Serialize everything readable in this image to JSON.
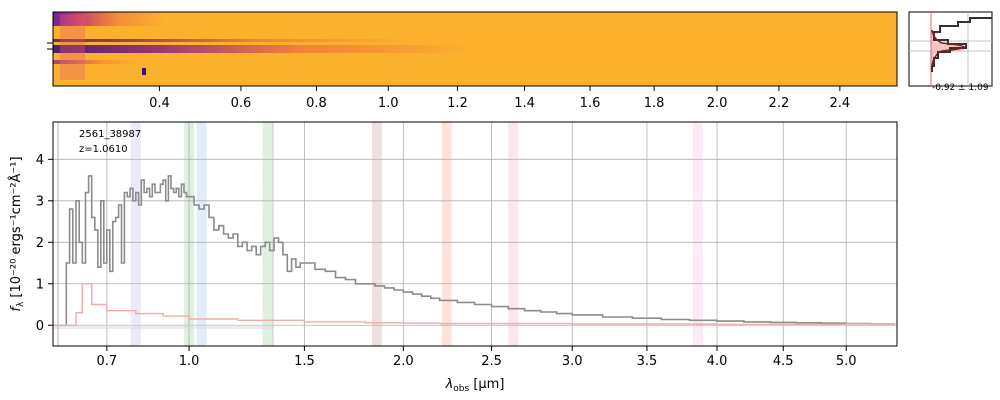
{
  "colors": {
    "spectrum_line": "#8c8c8c",
    "error_line": "#f4aaaa",
    "grid": "#b0b0b0",
    "twod_fill": "#fbb12c",
    "twod_dark": "#3b0f70",
    "profile_line": "#333333",
    "profile_fit": "#8b1a1a",
    "profile_fill": "#f2b5b5"
  },
  "chart_data": [
    {
      "type": "heatmap",
      "description": "2D spectrum cutout",
      "x_tick_labels": [
        "0.4",
        "0.6",
        "0.8",
        "1.0",
        "1.2",
        "1.4",
        "1.6",
        "1.8",
        "2.0",
        "2.2",
        "2.4"
      ],
      "x_tick_values": [
        0.4,
        0.6,
        0.8,
        1.0,
        1.2,
        1.4,
        1.6,
        1.8,
        2.0,
        2.2,
        2.4
      ],
      "colormap": "plasma"
    },
    {
      "type": "line",
      "description": "spatial profile",
      "annotation": "-0.92 ± 1.09"
    },
    {
      "type": "line",
      "object_id": "2561_38987",
      "redshift_label": "z=1.0610",
      "xlabel_main": "λ",
      "xlabel_sub": "obs",
      "xlabel_unit": " [μm]",
      "ylabel_main": "f",
      "ylabel_sub": "λ",
      "ylabel_unit": " [10⁻²⁰ ergs⁻¹cm⁻²Å⁻¹]",
      "xlim": [
        0.53,
        5.42
      ],
      "ylim": [
        -0.5,
        4.9
      ],
      "x_ticks": [
        0.7,
        1.0,
        1.5,
        2.0,
        2.5,
        3.0,
        3.5,
        4.0,
        4.5,
        5.0
      ],
      "x_tick_labels": [
        "0.7",
        "1.0",
        "1.5",
        "2.0",
        "2.5",
        "3.0",
        "3.5",
        "4.0",
        "4.5",
        "5.0"
      ],
      "y_ticks": [
        0,
        1,
        2,
        3,
        4
      ],
      "y_tick_labels": [
        "0",
        "1",
        "2",
        "3",
        "4"
      ],
      "grid": true,
      "line_bands": [
        {
          "x": 0.8,
          "color": "#c9c4ef"
        },
        {
          "x": 1.0,
          "color": "#a6d4a0"
        },
        {
          "x": 1.05,
          "color": "#a7cbe6"
        },
        {
          "x": 1.33,
          "color": "#a6d4a0"
        },
        {
          "x": 1.86,
          "color": "#c9a9a1"
        },
        {
          "x": 2.24,
          "color": "#f6b19b"
        },
        {
          "x": 2.63,
          "color": "#f5b7cf"
        },
        {
          "x": 3.86,
          "color": "#f6c6e7"
        }
      ],
      "series": [
        {
          "role": "flux",
          "x": [
            0.53,
            0.56,
            0.57,
            0.58,
            0.59,
            0.6,
            0.61,
            0.62,
            0.63,
            0.64,
            0.65,
            0.66,
            0.67,
            0.68,
            0.69,
            0.7,
            0.71,
            0.72,
            0.73,
            0.74,
            0.75,
            0.76,
            0.77,
            0.78,
            0.79,
            0.8,
            0.81,
            0.82,
            0.83,
            0.84,
            0.85,
            0.86,
            0.87,
            0.88,
            0.89,
            0.9,
            0.91,
            0.92,
            0.93,
            0.94,
            0.95,
            0.96,
            0.97,
            0.98,
            0.99,
            1.0,
            1.02,
            1.04,
            1.06,
            1.08,
            1.1,
            1.12,
            1.14,
            1.16,
            1.18,
            1.2,
            1.22,
            1.24,
            1.26,
            1.28,
            1.3,
            1.32,
            1.34,
            1.36,
            1.38,
            1.4,
            1.42,
            1.44,
            1.46,
            1.48,
            1.5,
            1.55,
            1.6,
            1.65,
            1.7,
            1.75,
            1.8,
            1.85,
            1.9,
            1.95,
            2.0,
            2.05,
            2.1,
            2.15,
            2.2,
            2.3,
            2.4,
            2.5,
            2.6,
            2.7,
            2.8,
            2.9,
            3.0,
            3.2,
            3.4,
            3.6,
            3.8,
            4.0,
            4.2,
            4.4,
            4.6,
            4.8,
            5.0,
            5.2,
            5.4
          ],
          "y": [
            0,
            0,
            1.5,
            2.8,
            1.5,
            3.0,
            2.0,
            1.5,
            3.2,
            3.6,
            2.6,
            2.3,
            1.4,
            3.0,
            1.5,
            2.3,
            1.3,
            2.5,
            2.6,
            2.9,
            1.5,
            3.2,
            3.1,
            3.3,
            3.0,
            3.2,
            2.9,
            3.5,
            3.2,
            3.3,
            3.1,
            3.4,
            3.2,
            3.2,
            3.4,
            3.5,
            3.0,
            3.6,
            3.3,
            3.2,
            3.3,
            3.1,
            3.4,
            3.2,
            3.1,
            3.1,
            2.9,
            2.8,
            2.9,
            2.6,
            2.3,
            2.4,
            2.2,
            2.1,
            2.2,
            1.9,
            2.0,
            1.8,
            1.9,
            1.7,
            1.9,
            2.0,
            1.8,
            2.1,
            2.0,
            1.7,
            1.3,
            1.6,
            1.4,
            1.5,
            1.5,
            1.35,
            1.3,
            1.15,
            1.1,
            1.0,
            1.0,
            0.95,
            0.9,
            0.85,
            0.8,
            0.75,
            0.7,
            0.65,
            0.6,
            0.55,
            0.5,
            0.45,
            0.4,
            0.35,
            0.32,
            0.28,
            0.25,
            0.2,
            0.17,
            0.14,
            0.12,
            0.1,
            0.08,
            0.07,
            0.06,
            0.05,
            0.04,
            0.03,
            0.02
          ]
        },
        {
          "role": "error",
          "x": [
            0.53,
            0.6,
            0.62,
            0.65,
            0.7,
            0.8,
            0.9,
            1.0,
            1.2,
            1.5,
            1.8,
            2.0,
            2.2,
            2.5,
            3.0,
            3.5,
            4.0,
            4.5,
            5.0,
            5.4
          ],
          "y": [
            0,
            0.3,
            1.0,
            0.5,
            0.35,
            0.28,
            0.22,
            0.15,
            0.12,
            0.08,
            0.06,
            0.05,
            0.04,
            0.04,
            0.03,
            0.03,
            0.02,
            0.02,
            0.03,
            0.02
          ]
        }
      ]
    }
  ]
}
